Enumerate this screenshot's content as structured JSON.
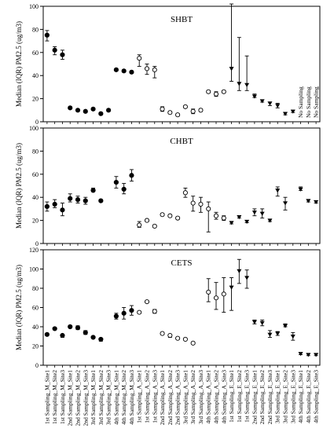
{
  "figure": {
    "x_categories": [
      "1st Sampling_M_Site1",
      "1st Sampling_M_Site2",
      "1st Sampling_M_Site3",
      "2nd Sampling_M_Site1",
      "2nd Sampling_M_Site2",
      "2nd Sampling_M_Site3",
      "3rd Sampling_M_Site1",
      "3rd Sampling_M_Site2",
      "3rd Sampling_M_Site3",
      "4th Sampling_M_Site1",
      "4th Sampling_M_Site2",
      "4th Sampling_M_Site3",
      "1st Sampling_A_Site1",
      "1st Sampling_A_Site2",
      "1st Sampling_A_Site3",
      "2nd Sampling_A_Site1",
      "2nd Sampling_A_Site2",
      "2nd Sampling_A_Site3",
      "3rd Sampling_A_Site1",
      "3rd Sampling_A_Site2",
      "3rd Sampling_A_Site3",
      "4th Sampling_A_Site1",
      "4th Sampling_A_Site2",
      "4th Sampling_A_Site3",
      "1st Sampling_E_Site1",
      "1st Sampling_E_Site2",
      "1st Sampling_E_Site3",
      "2nd Sampling_E_Site1",
      "2nd Sampling_E_Site2",
      "2nd Sampling_E_Site3",
      "3rd Sampling_E_Site1",
      "3rd Sampling_E_Site2",
      "3rd Sampling_E_Site3",
      "4th Sampling_E_Site1",
      "4th Sampling_E_Site2",
      "4th Sampling_E_Site3"
    ],
    "no_sampling_label": "No Sampling"
  },
  "chart_data": [
    {
      "type": "scatter",
      "title": "SHBT",
      "ylabel": "Median (IQR) PM2.5 (ug/m3)",
      "ylim": [
        0,
        100
      ],
      "yticks": [
        "0",
        "20",
        "40",
        "60",
        "80",
        "100"
      ],
      "marker_groups": {
        "M": "filled-circle",
        "A": "open-circle",
        "E": "filled-triangle-down"
      },
      "no_sampling_indices": [
        33,
        34,
        35
      ],
      "median": [
        75,
        62,
        58,
        12,
        10,
        9,
        11,
        7,
        10,
        45,
        44,
        43,
        55,
        46,
        45,
        11,
        8,
        6,
        13,
        9,
        10,
        26,
        24,
        26,
        46,
        33,
        32,
        22,
        18,
        16,
        14,
        7,
        9,
        null,
        null,
        null
      ],
      "q1": [
        70,
        58,
        54,
        11,
        9,
        8,
        10,
        6,
        9,
        44,
        43,
        42,
        48,
        41,
        38,
        9,
        7,
        5,
        12,
        7,
        9,
        25,
        22,
        25,
        35,
        27,
        27,
        21,
        17,
        14,
        12,
        6,
        8,
        null,
        null,
        null
      ],
      "q3": [
        79,
        65,
        62,
        13,
        11,
        10,
        12,
        8,
        11,
        46,
        45,
        44,
        58,
        50,
        48,
        13,
        9,
        7,
        14,
        11,
        11,
        27,
        26,
        27,
        102,
        73,
        57,
        24,
        19,
        17,
        16,
        8,
        10,
        null,
        null,
        null
      ]
    },
    {
      "type": "scatter",
      "title": "CHBT",
      "ylabel": "Median (IQR) PM2.5 (ug/m3)",
      "ylim": [
        0,
        100
      ],
      "yticks": [
        "0",
        "20",
        "40",
        "60",
        "80",
        "100"
      ],
      "marker_groups": {
        "M": "filled-circle",
        "A": "open-circle",
        "E": "filled-triangle-down"
      },
      "no_sampling_indices": [],
      "median": [
        32,
        34,
        29,
        39,
        38,
        37,
        46,
        37,
        null,
        53,
        47,
        59,
        16,
        20,
        15,
        25,
        24,
        22,
        44,
        35,
        34,
        30,
        24,
        22,
        18,
        23,
        19,
        27,
        26,
        20,
        46,
        35,
        null,
        47,
        37,
        36
      ],
      "q1": [
        28,
        31,
        24,
        36,
        35,
        34,
        45,
        36,
        null,
        48,
        43,
        54,
        14,
        19,
        14,
        24,
        23,
        21,
        40,
        28,
        27,
        10,
        21,
        20,
        17,
        22,
        18,
        24,
        22,
        19,
        41,
        29,
        null,
        46,
        36,
        35
      ],
      "q3": [
        36,
        38,
        35,
        43,
        41,
        40,
        48,
        38,
        null,
        58,
        52,
        64,
        19,
        21,
        16,
        26,
        25,
        23,
        48,
        41,
        40,
        36,
        27,
        24,
        19,
        24,
        20,
        30,
        30,
        21,
        49,
        40,
        null,
        49,
        38,
        37
      ]
    },
    {
      "type": "scatter",
      "title": "CETS",
      "ylabel": "Median (IQR) PM2.5 (ug/m3)",
      "ylim": [
        0,
        120
      ],
      "yticks": [
        "0",
        "20",
        "40",
        "60",
        "80",
        "100",
        "120"
      ],
      "marker_groups": {
        "M": "filled-circle",
        "A": "open-circle",
        "E": "filled-triangle-down"
      },
      "no_sampling_indices": [],
      "median": [
        32,
        38,
        31,
        40,
        39,
        34,
        29,
        27,
        null,
        51,
        54,
        57,
        55,
        66,
        56,
        33,
        31,
        28,
        27,
        23,
        null,
        76,
        70,
        74,
        81,
        98,
        91,
        45,
        44,
        32,
        33,
        41,
        30,
        12,
        11,
        11
      ],
      "q1": [
        31,
        37,
        29,
        39,
        37,
        32,
        28,
        25,
        null,
        48,
        48,
        52,
        54,
        65,
        54,
        32,
        29,
        27,
        26,
        22,
        null,
        66,
        58,
        55,
        57,
        85,
        80,
        43,
        41,
        29,
        31,
        40,
        26,
        11,
        10,
        10
      ],
      "q3": [
        33,
        39,
        32,
        41,
        41,
        36,
        30,
        28,
        null,
        54,
        60,
        62,
        56,
        67,
        58,
        34,
        32,
        29,
        28,
        24,
        null,
        90,
        86,
        91,
        91,
        110,
        99,
        47,
        47,
        36,
        35,
        43,
        34,
        13,
        12,
        12
      ]
    }
  ]
}
